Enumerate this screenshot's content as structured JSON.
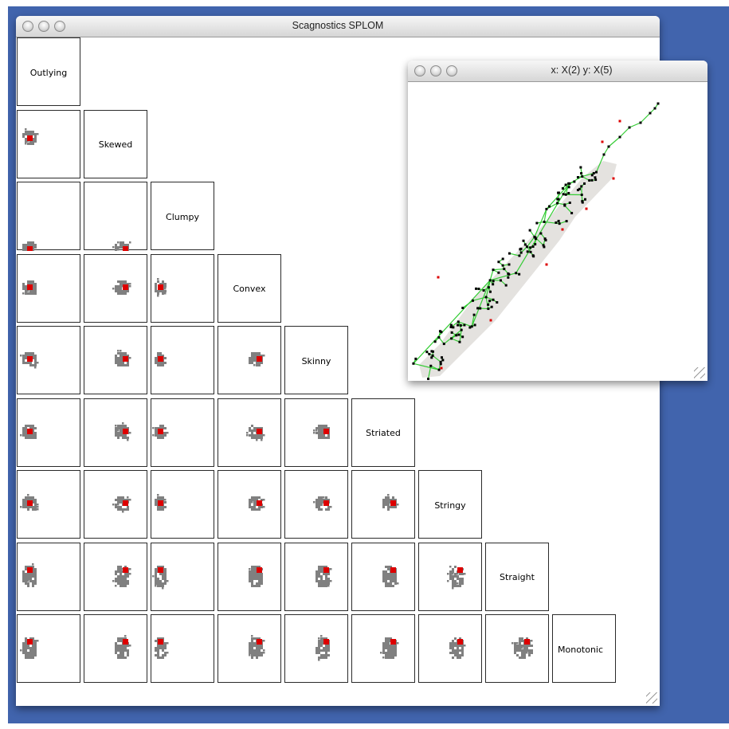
{
  "main_window": {
    "title": "Scagnostics SPLOM"
  },
  "scatter_window": {
    "title": "x: X(2) y: X(5)"
  },
  "splom": {
    "variables": [
      "Outlying",
      "Skewed",
      "Clumpy",
      "Convex",
      "Skinny",
      "Striated",
      "Stringy",
      "Straight",
      "Monotonic"
    ]
  },
  "colors": {
    "desktop": "#4164ad",
    "blob": "#808080",
    "highlight": "#dd0000",
    "mst_edge": "#33cc33",
    "point": "#000000",
    "hull": "#e4e2df"
  }
}
